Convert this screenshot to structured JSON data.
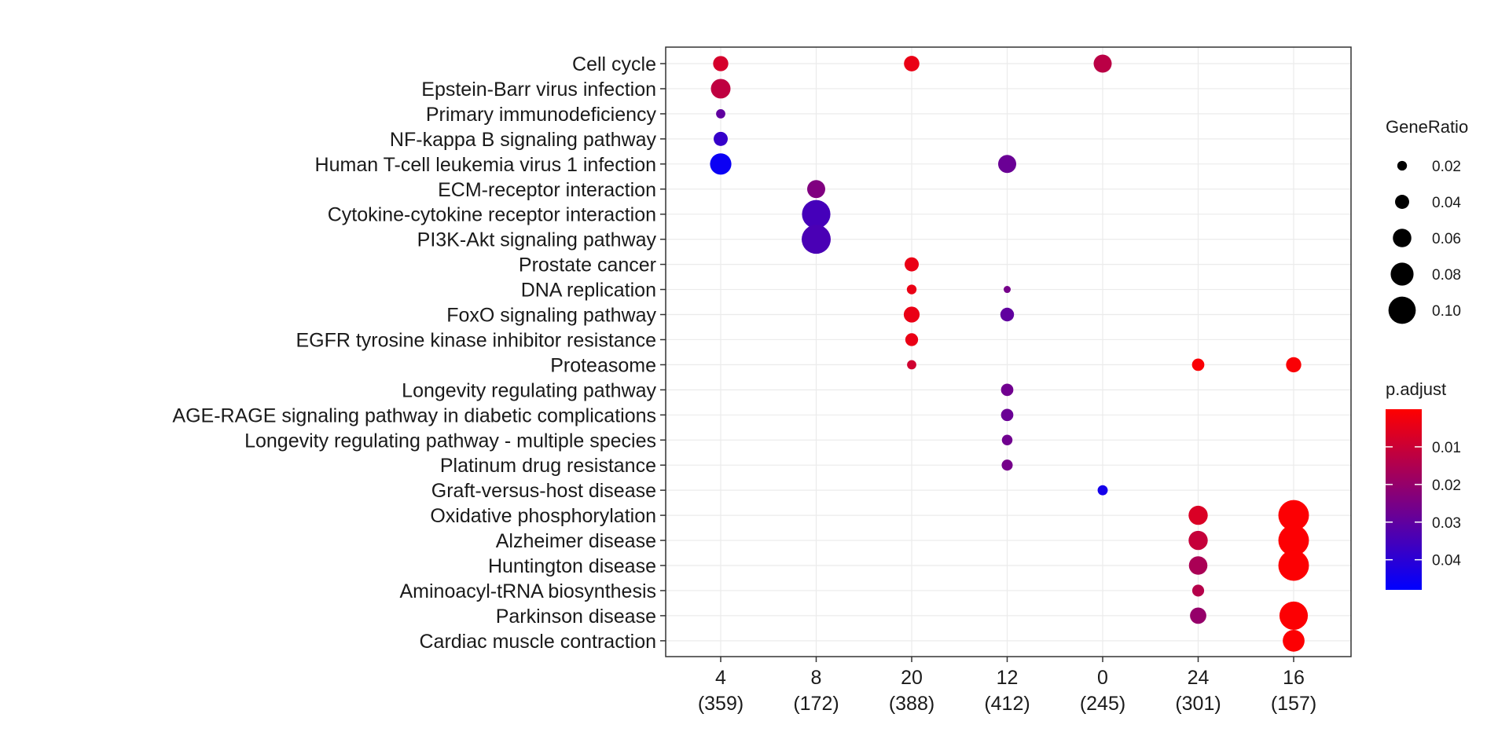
{
  "chart_data": {
    "type": "scatter",
    "subtype": "dot-plot",
    "x_categories": [
      "4",
      "8",
      "20",
      "12",
      "0",
      "24",
      "16"
    ],
    "x_counts": [
      "(359)",
      "(172)",
      "(388)",
      "(412)",
      "(245)",
      "(301)",
      "(157)"
    ],
    "y_terms": [
      "Cell cycle",
      "Epstein-Barr virus infection",
      "Primary immunodeficiency",
      "NF-kappa B signaling pathway",
      "Human T-cell leukemia virus 1 infection",
      "ECM-receptor interaction",
      "Cytokine-cytokine receptor interaction",
      "PI3K-Akt signaling pathway",
      "Prostate cancer",
      "DNA replication",
      "FoxO signaling pathway",
      "EGFR tyrosine kinase inhibitor resistance",
      "Proteasome",
      "Longevity regulating pathway",
      "AGE-RAGE signaling pathway in diabetic complications",
      "Longevity regulating pathway - multiple species",
      "Platinum drug resistance",
      "Graft-versus-host disease",
      "Oxidative phosphorylation",
      "Alzheimer disease",
      "Huntington disease",
      "Aminoacyl-tRNA biosynthesis",
      "Parkinson disease",
      "Cardiac muscle contraction"
    ],
    "points": [
      {
        "x": "4",
        "term": "Cell cycle",
        "gene_ratio": 0.045,
        "p_adjust": 0.008
      },
      {
        "x": "4",
        "term": "Epstein-Barr virus infection",
        "gene_ratio": 0.065,
        "p_adjust": 0.012
      },
      {
        "x": "4",
        "term": "Primary immunodeficiency",
        "gene_ratio": 0.018,
        "p_adjust": 0.03
      },
      {
        "x": "4",
        "term": "NF-kappa B signaling pathway",
        "gene_ratio": 0.04,
        "p_adjust": 0.038
      },
      {
        "x": "4",
        "term": "Human T-cell leukemia virus 1 infection",
        "gene_ratio": 0.073,
        "p_adjust": 0.046
      },
      {
        "x": "8",
        "term": "ECM-receptor interaction",
        "gene_ratio": 0.058,
        "p_adjust": 0.024
      },
      {
        "x": "8",
        "term": "Cytokine-cytokine receptor interaction",
        "gene_ratio": 0.105,
        "p_adjust": 0.035
      },
      {
        "x": "8",
        "term": "PI3K-Akt signaling pathway",
        "gene_ratio": 0.108,
        "p_adjust": 0.034
      },
      {
        "x": "20",
        "term": "Cell cycle",
        "gene_ratio": 0.046,
        "p_adjust": 0.004
      },
      {
        "x": "20",
        "term": "Prostate cancer",
        "gene_ratio": 0.04,
        "p_adjust": 0.004
      },
      {
        "x": "20",
        "term": "DNA replication",
        "gene_ratio": 0.02,
        "p_adjust": 0.004
      },
      {
        "x": "20",
        "term": "FoxO signaling pathway",
        "gene_ratio": 0.048,
        "p_adjust": 0.004
      },
      {
        "x": "20",
        "term": "EGFR tyrosine kinase inhibitor resistance",
        "gene_ratio": 0.034,
        "p_adjust": 0.004
      },
      {
        "x": "20",
        "term": "Proteasome",
        "gene_ratio": 0.018,
        "p_adjust": 0.009
      },
      {
        "x": "12",
        "term": "Human T-cell leukemia virus 1 infection",
        "gene_ratio": 0.058,
        "p_adjust": 0.028
      },
      {
        "x": "12",
        "term": "DNA replication",
        "gene_ratio": 0.008,
        "p_adjust": 0.026
      },
      {
        "x": "12",
        "term": "FoxO signaling pathway",
        "gene_ratio": 0.038,
        "p_adjust": 0.03
      },
      {
        "x": "12",
        "term": "Longevity regulating pathway",
        "gene_ratio": 0.032,
        "p_adjust": 0.027
      },
      {
        "x": "12",
        "term": "AGE-RAGE signaling pathway in diabetic complications",
        "gene_ratio": 0.032,
        "p_adjust": 0.028
      },
      {
        "x": "12",
        "term": "Longevity regulating pathway - multiple species",
        "gene_ratio": 0.024,
        "p_adjust": 0.027
      },
      {
        "x": "12",
        "term": "Platinum drug resistance",
        "gene_ratio": 0.026,
        "p_adjust": 0.026
      },
      {
        "x": "0",
        "term": "Cell cycle",
        "gene_ratio": 0.058,
        "p_adjust": 0.013
      },
      {
        "x": "0",
        "term": "Graft-versus-host disease",
        "gene_ratio": 0.022,
        "p_adjust": 0.044
      },
      {
        "x": "24",
        "term": "Proteasome",
        "gene_ratio": 0.032,
        "p_adjust": 0.001
      },
      {
        "x": "24",
        "term": "Oxidative phosphorylation",
        "gene_ratio": 0.063,
        "p_adjust": 0.007
      },
      {
        "x": "24",
        "term": "Alzheimer disease",
        "gene_ratio": 0.063,
        "p_adjust": 0.011
      },
      {
        "x": "24",
        "term": "Huntington disease",
        "gene_ratio": 0.06,
        "p_adjust": 0.016
      },
      {
        "x": "24",
        "term": "Aminoacyl-tRNA biosynthesis",
        "gene_ratio": 0.03,
        "p_adjust": 0.014
      },
      {
        "x": "24",
        "term": "Parkinson disease",
        "gene_ratio": 0.05,
        "p_adjust": 0.02
      },
      {
        "x": "16",
        "term": "Proteasome",
        "gene_ratio": 0.045,
        "p_adjust": 0.001
      },
      {
        "x": "16",
        "term": "Oxidative phosphorylation",
        "gene_ratio": 0.115,
        "p_adjust": 0.0005
      },
      {
        "x": "16",
        "term": "Alzheimer disease",
        "gene_ratio": 0.115,
        "p_adjust": 0.0005
      },
      {
        "x": "16",
        "term": "Huntington disease",
        "gene_ratio": 0.115,
        "p_adjust": 0.0005
      },
      {
        "x": "16",
        "term": "Parkinson disease",
        "gene_ratio": 0.105,
        "p_adjust": 0.0005
      },
      {
        "x": "16",
        "term": "Cardiac muscle contraction",
        "gene_ratio": 0.075,
        "p_adjust": 0.0005
      }
    ],
    "size_legend": {
      "title": "GeneRatio",
      "breaks": [
        0.02,
        0.04,
        0.06,
        0.08,
        0.1
      ],
      "labels": [
        "0.02",
        "0.04",
        "0.06",
        "0.08",
        "0.10"
      ]
    },
    "color_legend": {
      "title": "p.adjust",
      "breaks": [
        0.01,
        0.02,
        0.03,
        0.04
      ],
      "labels": [
        "0.01",
        "0.02",
        "0.03",
        "0.04"
      ],
      "range": [
        0.0,
        0.048
      ],
      "low_color": "#ff0000",
      "high_color": "#0000ff"
    },
    "grid": true,
    "legend_position": "right",
    "panel_border_color": "#333333",
    "grid_color": "#ebebeb"
  }
}
